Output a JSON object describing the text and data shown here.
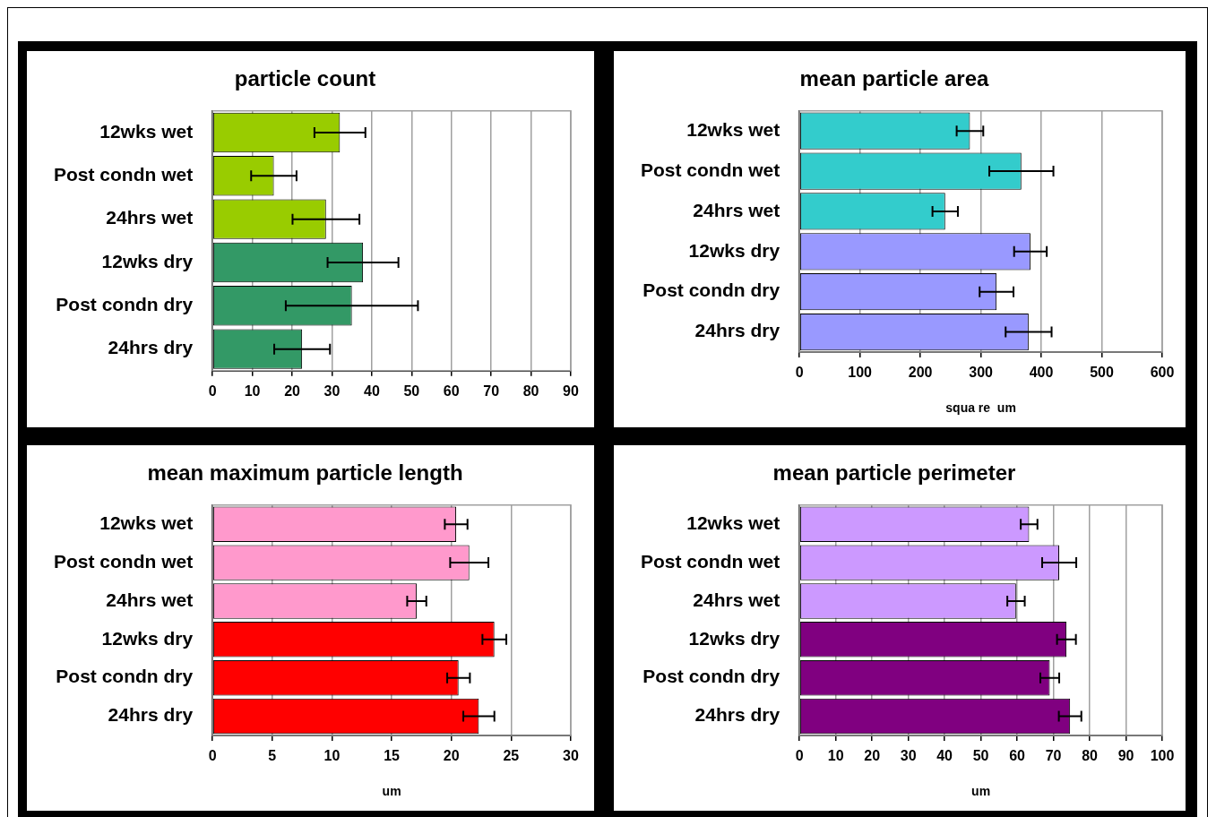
{
  "chart_data": [
    {
      "type": "bar",
      "orientation": "horizontal",
      "title": "particle count",
      "categories": [
        "12wks wet",
        "Post condn wet",
        "24hrs wet",
        "12wks dry",
        "Post condn dry",
        "24hrs dry"
      ],
      "values": [
        32,
        15.4,
        28.5,
        37.8,
        35,
        22.5
      ],
      "errors": [
        6.4,
        5.7,
        8.4,
        8.9,
        16.6,
        7
      ],
      "colors": [
        "#99cc00",
        "#99cc00",
        "#99cc00",
        "#339966",
        "#339966",
        "#339966"
      ],
      "xlim": [
        0,
        90
      ],
      "xticks": [
        0,
        10,
        20,
        30,
        40,
        50,
        60,
        70,
        80,
        90
      ],
      "grid": "x"
    },
    {
      "type": "bar",
      "orientation": "horizontal",
      "title": "mean particle area",
      "xlabel": "squa re  um",
      "categories": [
        "12wks wet",
        "Post condn wet",
        "24hrs wet",
        "12wks dry",
        "Post condn dry",
        "24hrs dry"
      ],
      "values": [
        282,
        367,
        241,
        382,
        326,
        379
      ],
      "errors": [
        22,
        53,
        21,
        27,
        28,
        38
      ],
      "colors": [
        "#33cccc",
        "#33cccc",
        "#33cccc",
        "#9999ff",
        "#9999ff",
        "#9999ff"
      ],
      "xlim": [
        0,
        600
      ],
      "xticks": [
        0,
        100,
        200,
        300,
        400,
        500,
        600
      ],
      "grid": "x"
    },
    {
      "type": "bar",
      "orientation": "horizontal",
      "title": "mean maximum particle length",
      "xlabel": "um",
      "categories": [
        "12wks wet",
        "Post condn wet",
        "24hrs wet",
        "12wks dry",
        "Post condn dry",
        "24hrs dry"
      ],
      "values": [
        20.4,
        21.5,
        17.1,
        23.6,
        20.6,
        22.3
      ],
      "errors": [
        0.95,
        1.6,
        0.8,
        1,
        0.95,
        1.3
      ],
      "colors": [
        "#ff99cc",
        "#ff99cc",
        "#ff99cc",
        "#ff0000",
        "#ff0000",
        "#ff0000"
      ],
      "xlim": [
        0,
        30
      ],
      "xticks": [
        0,
        5,
        10,
        15,
        20,
        25,
        30
      ],
      "grid": "x"
    },
    {
      "type": "bar",
      "orientation": "horizontal",
      "title": "mean particle perimeter",
      "xlabel": "um",
      "categories": [
        "12wks wet",
        "Post condn wet",
        "24hrs wet",
        "12wks dry",
        "Post condn dry",
        "24hrs dry"
      ],
      "values": [
        63.3,
        71.6,
        59.7,
        73.6,
        69,
        74.6
      ],
      "errors": [
        2.3,
        4.7,
        2.4,
        2.6,
        2.6,
        3.1
      ],
      "colors": [
        "#cc99ff",
        "#cc99ff",
        "#cc99ff",
        "#800080",
        "#800080",
        "#800080"
      ],
      "xlim": [
        0,
        100
      ],
      "xticks": [
        0,
        10,
        20,
        30,
        40,
        50,
        60,
        70,
        80,
        90,
        100
      ],
      "grid": "x"
    }
  ]
}
